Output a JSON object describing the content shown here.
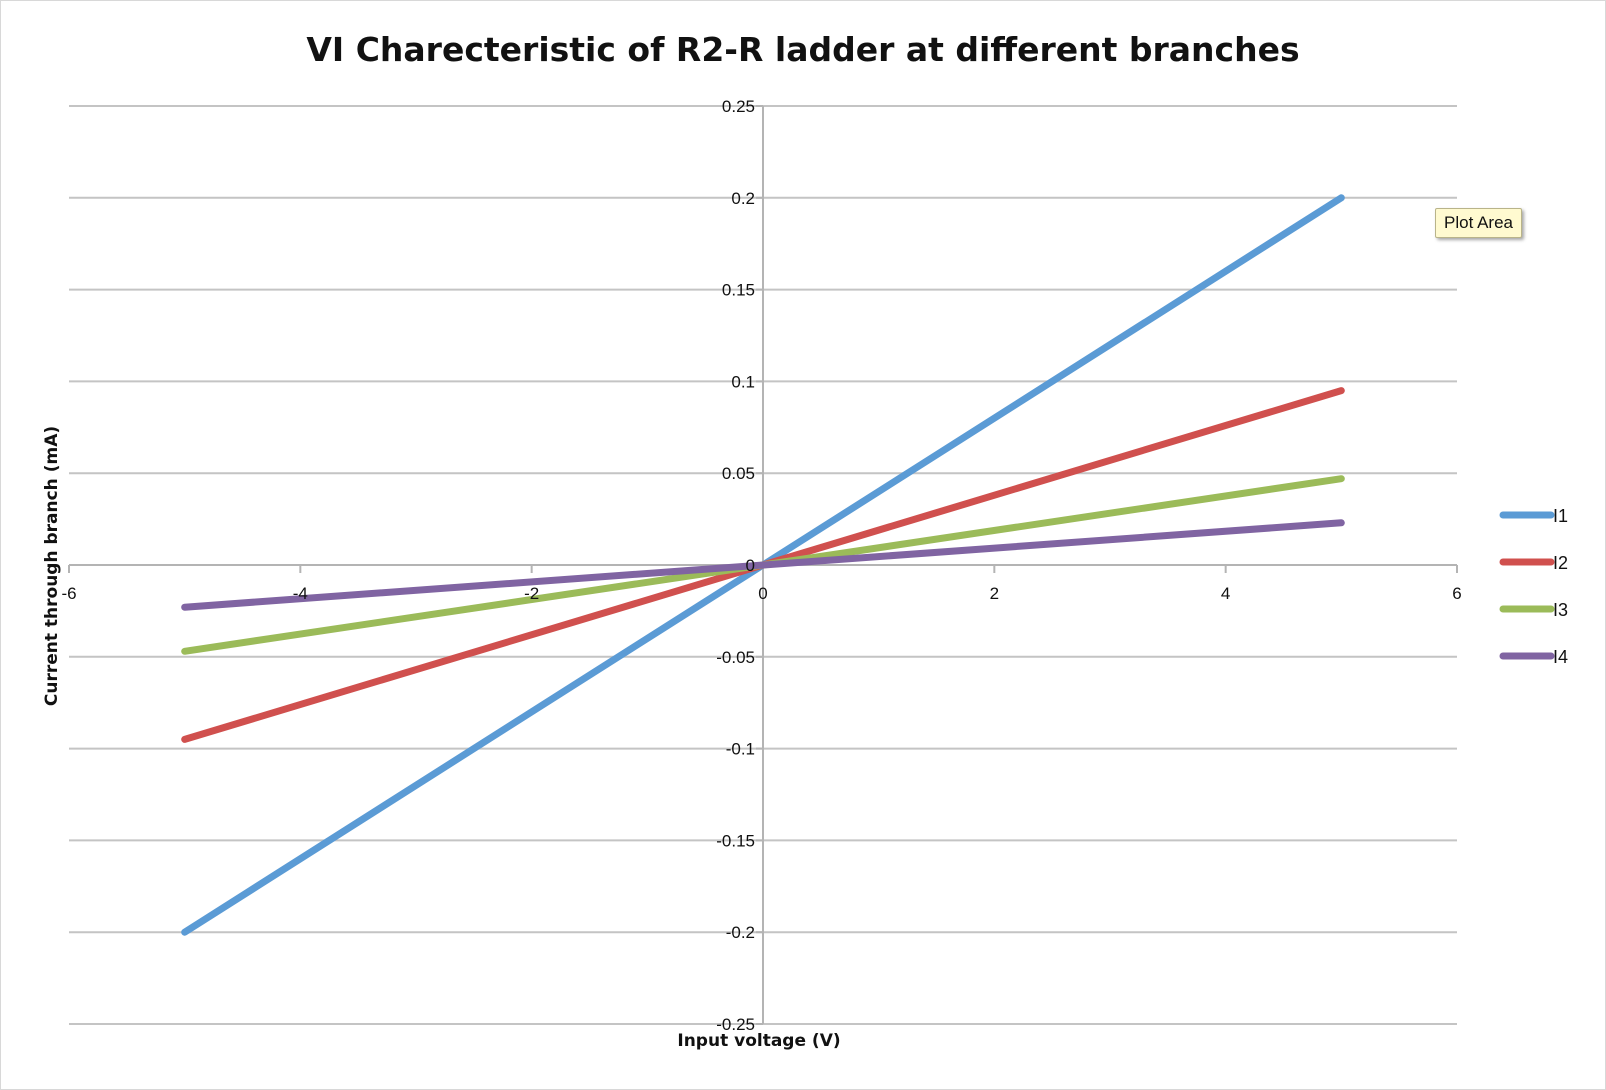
{
  "chart_data": {
    "type": "line",
    "title": "VI Charecteristic of R2-R ladder at different branches",
    "xlabel": "Input voltage (V)",
    "ylabel": "Current through branch (mA)",
    "xlim": [
      -6,
      6
    ],
    "ylim": [
      -0.25,
      0.25
    ],
    "x_ticks": [
      "-6",
      "-4",
      "-2",
      "0",
      "2",
      "4",
      "6"
    ],
    "y_ticks": [
      "0.25",
      "0.2",
      "0.15",
      "0.1",
      "0.05",
      "0",
      "-0.05",
      "-0.1",
      "-0.15",
      "-0.2",
      "-0.25"
    ],
    "grid": true,
    "legend_position": "right",
    "x": [
      -5,
      5
    ],
    "series": [
      {
        "name": "I1",
        "color": "#5b9bd5",
        "values": [
          -0.2,
          0.2
        ]
      },
      {
        "name": "I2",
        "color": "#d0504e",
        "values": [
          -0.095,
          0.095
        ]
      },
      {
        "name": "I3",
        "color": "#9bbb59",
        "values": [
          -0.047,
          0.047
        ]
      },
      {
        "name": "I4",
        "color": "#8064a2",
        "values": [
          -0.023,
          0.023
        ]
      }
    ]
  },
  "tooltip": {
    "text": "Plot Area"
  }
}
